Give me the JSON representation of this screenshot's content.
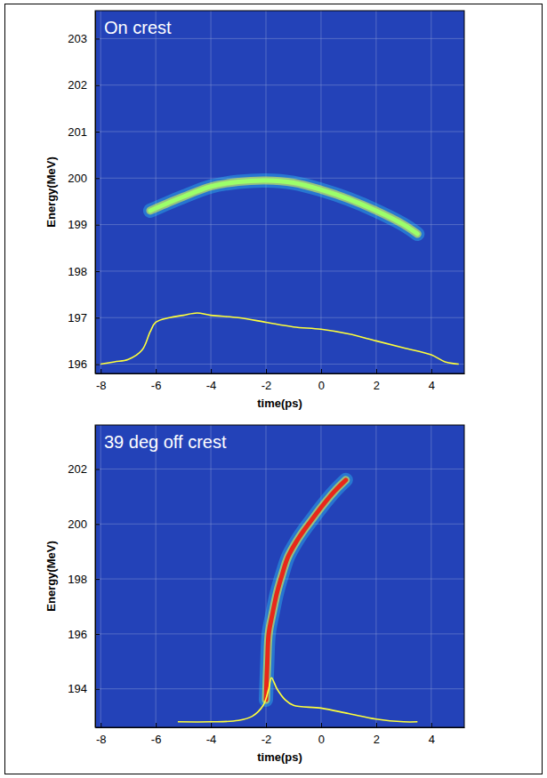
{
  "chart_data": [
    {
      "type": "line",
      "title": "On crest",
      "x_label": "time(ps)",
      "y_label": "Energy(MeV)",
      "xlim": [
        -8.2,
        5.2
      ],
      "ylim": [
        195.8,
        203.6
      ],
      "xticks": [
        -8,
        -6,
        -4,
        -2,
        0,
        2,
        4
      ],
      "yticks": [
        196,
        197,
        198,
        199,
        200,
        201,
        202,
        203
      ],
      "grid": true,
      "series": [
        {
          "color": "#9cff6a",
          "line_style": "thick",
          "x": [
            -6.2,
            -5.5,
            -5,
            -4,
            -3,
            -2,
            -1,
            0,
            1,
            2,
            3,
            3.5
          ],
          "values": [
            199.3,
            199.48,
            199.6,
            199.82,
            199.92,
            199.95,
            199.9,
            199.75,
            199.55,
            199.3,
            199.0,
            198.8
          ]
        },
        {
          "color": "#ffff3a",
          "line_style": "solid",
          "x": [
            -8,
            -7.5,
            -7,
            -6.5,
            -6.2,
            -6,
            -5.5,
            -5,
            -4.5,
            -4,
            -3,
            -2,
            -1,
            0,
            1,
            2,
            3,
            4,
            4.5,
            5
          ],
          "values": [
            196.0,
            196.05,
            196.1,
            196.3,
            196.7,
            196.9,
            197.0,
            197.05,
            197.1,
            197.05,
            197.0,
            196.9,
            196.8,
            196.75,
            196.65,
            196.5,
            196.35,
            196.2,
            196.05,
            196.0
          ]
        }
      ]
    },
    {
      "type": "line",
      "title": "39 deg off crest",
      "x_label": "time(ps)",
      "y_label": "Energy(MeV)",
      "xlim": [
        -8.2,
        5.2
      ],
      "ylim": [
        192.6,
        203.6
      ],
      "xticks": [
        -8,
        -6,
        -4,
        -2,
        0,
        2,
        4
      ],
      "yticks": [
        194,
        196,
        198,
        200,
        202
      ],
      "grid": true,
      "series": [
        {
          "color": "#e8281a",
          "line_style": "thick",
          "x": [
            -2.0,
            -1.95,
            -1.9,
            -1.75,
            -1.6,
            -1.4,
            -1.2,
            -0.9,
            -0.6,
            -0.3,
            0,
            0.5,
            0.9
          ],
          "values": [
            193.6,
            195.0,
            196.0,
            196.8,
            197.5,
            198.2,
            198.8,
            199.35,
            199.8,
            200.2,
            200.6,
            201.2,
            201.6
          ]
        },
        {
          "color": "#ffff3a",
          "line_style": "solid",
          "x": [
            -5.2,
            -4,
            -3,
            -2.5,
            -2.1,
            -1.9,
            -1.8,
            -1.6,
            -1.3,
            -1,
            0,
            1,
            2,
            3,
            3.5
          ],
          "values": [
            192.8,
            192.8,
            192.85,
            193.0,
            193.4,
            194.0,
            194.4,
            194.0,
            193.6,
            193.4,
            193.3,
            193.1,
            192.9,
            192.8,
            192.8
          ]
        }
      ]
    }
  ]
}
